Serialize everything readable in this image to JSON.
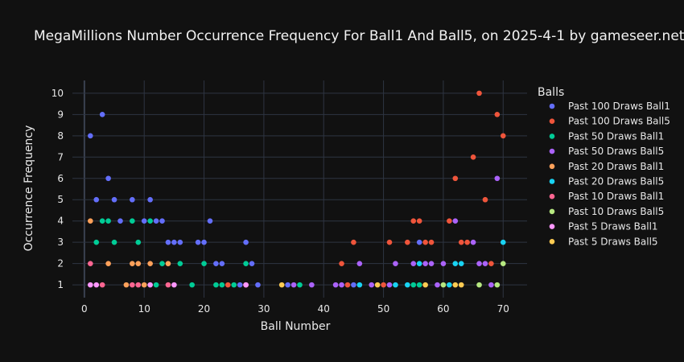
{
  "chart_data": {
    "type": "scatter",
    "title": "MegaMillions Number Occurrence Frequency For Ball1 And Ball5, on 2025-4-1 by gameseer.net",
    "xlabel": "Ball Number",
    "ylabel": "Occurrence Frequency",
    "xlim": [
      -2,
      74
    ],
    "ylim": [
      0.4,
      10.6
    ],
    "xticks": [
      0,
      10,
      20,
      30,
      40,
      50,
      60,
      70
    ],
    "yticks": [
      1,
      2,
      3,
      4,
      5,
      6,
      7,
      8,
      9,
      10
    ],
    "grid": true,
    "legend_title": "Balls",
    "legend_position": "right",
    "background": "#111111",
    "series": [
      {
        "name": "Past 100 Draws Ball1",
        "color": "#636efa",
        "points": [
          [
            1,
            8
          ],
          [
            2,
            5
          ],
          [
            3,
            9
          ],
          [
            4,
            6
          ],
          [
            5,
            5
          ],
          [
            6,
            4
          ],
          [
            8,
            5
          ],
          [
            10,
            4
          ],
          [
            11,
            5
          ],
          [
            12,
            4
          ],
          [
            13,
            4
          ],
          [
            14,
            3
          ],
          [
            15,
            3
          ],
          [
            16,
            3
          ],
          [
            19,
            3
          ],
          [
            20,
            3
          ],
          [
            21,
            4
          ],
          [
            22,
            2
          ],
          [
            23,
            2
          ],
          [
            26,
            1
          ],
          [
            27,
            3
          ],
          [
            28,
            2
          ],
          [
            29,
            1
          ],
          [
            34,
            1
          ],
          [
            45,
            1
          ],
          [
            56,
            3
          ]
        ]
      },
      {
        "name": "Past 100 Draws Ball5",
        "color": "#ef553b",
        "points": [
          [
            24,
            1
          ],
          [
            43,
            2
          ],
          [
            44,
            1
          ],
          [
            45,
            3
          ],
          [
            50,
            1
          ],
          [
            51,
            3
          ],
          [
            54,
            3
          ],
          [
            55,
            4
          ],
          [
            56,
            4
          ],
          [
            57,
            3
          ],
          [
            58,
            3
          ],
          [
            61,
            4
          ],
          [
            62,
            6
          ],
          [
            63,
            3
          ],
          [
            64,
            3
          ],
          [
            65,
            7
          ],
          [
            66,
            10
          ],
          [
            67,
            5
          ],
          [
            68,
            2
          ],
          [
            69,
            9
          ],
          [
            70,
            8
          ]
        ]
      },
      {
        "name": "Past 50 Draws Ball1",
        "color": "#00cc96",
        "points": [
          [
            2,
            3
          ],
          [
            3,
            4
          ],
          [
            4,
            4
          ],
          [
            5,
            3
          ],
          [
            8,
            4
          ],
          [
            9,
            3
          ],
          [
            11,
            4
          ],
          [
            12,
            1
          ],
          [
            13,
            2
          ],
          [
            16,
            2
          ],
          [
            18,
            1
          ],
          [
            20,
            2
          ],
          [
            22,
            1
          ],
          [
            23,
            1
          ],
          [
            25,
            1
          ],
          [
            27,
            2
          ],
          [
            36,
            1
          ],
          [
            55,
            1
          ],
          [
            56,
            1
          ]
        ]
      },
      {
        "name": "Past 50 Draws Ball5",
        "color": "#ab63fa",
        "points": [
          [
            35,
            1
          ],
          [
            38,
            1
          ],
          [
            42,
            1
          ],
          [
            43,
            1
          ],
          [
            46,
            2
          ],
          [
            48,
            1
          ],
          [
            51,
            1
          ],
          [
            52,
            2
          ],
          [
            55,
            2
          ],
          [
            57,
            2
          ],
          [
            58,
            2
          ],
          [
            59,
            1
          ],
          [
            60,
            2
          ],
          [
            62,
            4
          ],
          [
            65,
            3
          ],
          [
            66,
            2
          ],
          [
            67,
            2
          ],
          [
            68,
            1
          ],
          [
            69,
            6
          ]
        ]
      },
      {
        "name": "Past 20 Draws Ball1",
        "color": "#ffa15a",
        "points": [
          [
            1,
            4
          ],
          [
            4,
            2
          ],
          [
            7,
            1
          ],
          [
            8,
            2
          ],
          [
            9,
            2
          ],
          [
            10,
            1
          ],
          [
            11,
            2
          ],
          [
            14,
            2
          ]
        ]
      },
      {
        "name": "Past 20 Draws Ball5",
        "color": "#19d3f3",
        "points": [
          [
            46,
            1
          ],
          [
            52,
            1
          ],
          [
            54,
            1
          ],
          [
            56,
            2
          ],
          [
            61,
            1
          ],
          [
            62,
            2
          ],
          [
            63,
            2
          ],
          [
            70,
            3
          ]
        ]
      },
      {
        "name": "Past 10 Draws Ball1",
        "color": "#ff6692",
        "points": [
          [
            1,
            2
          ],
          [
            3,
            1
          ],
          [
            8,
            1
          ],
          [
            9,
            1
          ],
          [
            14,
            1
          ],
          [
            27,
            1
          ]
        ]
      },
      {
        "name": "Past 10 Draws Ball5",
        "color": "#b6e880",
        "points": [
          [
            60,
            1
          ],
          [
            66,
            1
          ],
          [
            69,
            1
          ],
          [
            70,
            2
          ]
        ]
      },
      {
        "name": "Past 5 Draws Ball1",
        "color": "#ff97ff",
        "points": [
          [
            1,
            1
          ],
          [
            2,
            1
          ],
          [
            11,
            1
          ],
          [
            15,
            1
          ],
          [
            27,
            1
          ]
        ]
      },
      {
        "name": "Past 5 Draws Ball5",
        "color": "#fecb52",
        "points": [
          [
            33,
            1
          ],
          [
            49,
            1
          ],
          [
            57,
            1
          ],
          [
            62,
            1
          ],
          [
            63,
            1
          ]
        ]
      }
    ]
  }
}
